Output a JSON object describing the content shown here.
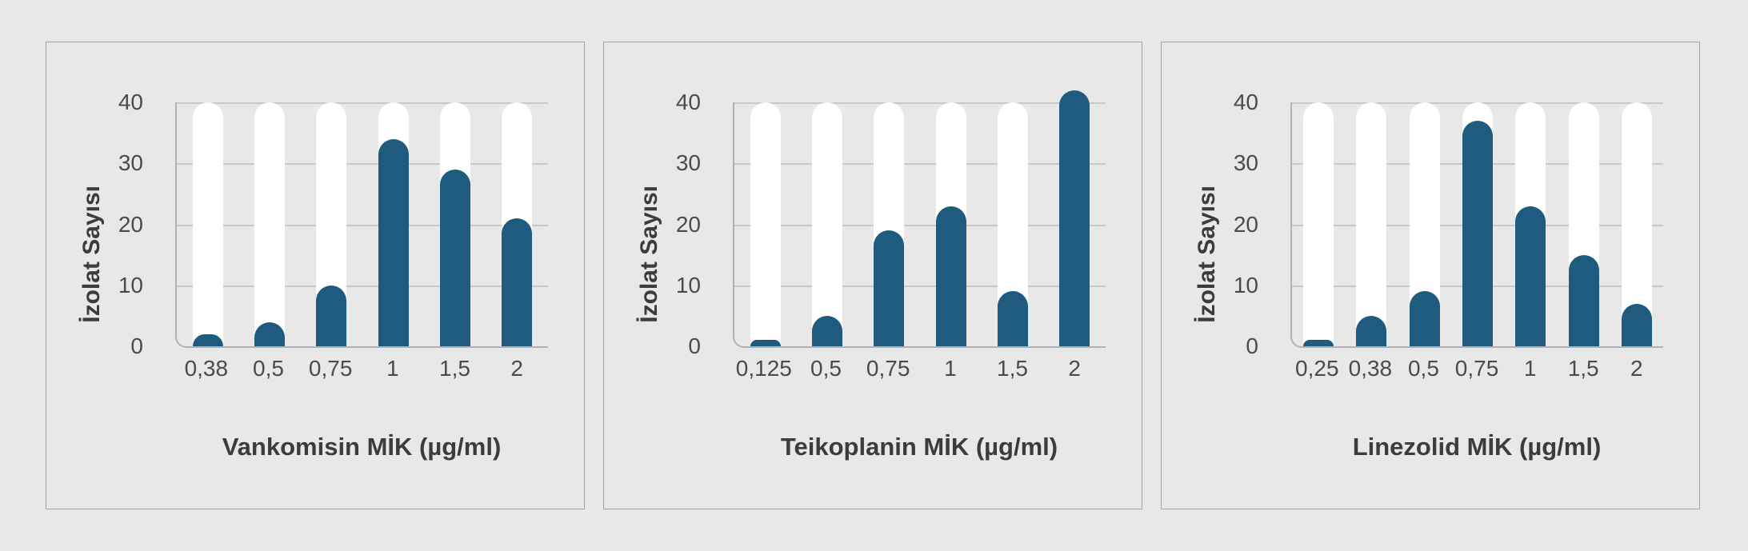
{
  "page": {
    "background": "#e8e8e8",
    "description": "Three MIC distribution bar charts"
  },
  "colors": {
    "page_bg": "#e8e8e8",
    "panel_border": "#a4a4ac",
    "bar": "#1e5b7e",
    "track": "#ffffff",
    "grid": "#c8c8ca",
    "axis": "#b2b2b6",
    "text_strong": "#3c3c3c",
    "text_tick": "#4b4b4b"
  },
  "chart_data": [
    {
      "type": "bar",
      "title": "Vankomisin MİK (µg/ml)",
      "ylabel": "İzolat Sayısı",
      "xlabel": "Vankomisin MİK (µg/ml)",
      "categories": [
        "0,38",
        "0,5",
        "0,75",
        "1",
        "1,5",
        "2"
      ],
      "values": [
        2,
        4,
        10,
        34,
        29,
        21
      ],
      "ylim": [
        0,
        40
      ],
      "yticks": [
        0,
        10,
        20,
        30,
        40
      ],
      "grid": true,
      "legend": false,
      "bar_style": "rounded-top with full-height white background track"
    },
    {
      "type": "bar",
      "title": "Teikoplanin MİK (µg/ml)",
      "ylabel": "İzolat Sayısı",
      "xlabel": "Teikoplanin MİK (µg/ml)",
      "categories": [
        "0,125",
        "0,5",
        "0,75",
        "1",
        "1,5",
        "2"
      ],
      "values": [
        1,
        5,
        19,
        23,
        9,
        42
      ],
      "ylim": [
        0,
        40
      ],
      "yticks": [
        0,
        10,
        20,
        30,
        40
      ],
      "grid": true,
      "legend": false,
      "bar_style": "rounded-top with full-height white background track"
    },
    {
      "type": "bar",
      "title": "Linezolid MİK (µg/ml)",
      "ylabel": "İzolat Sayısı",
      "xlabel": "Linezolid MİK (µg/ml)",
      "categories": [
        "0,25",
        "0,38",
        "0,5",
        "0,75",
        "1",
        "1,5",
        "2"
      ],
      "values": [
        1,
        5,
        9,
        37,
        23,
        15,
        7
      ],
      "ylim": [
        0,
        40
      ],
      "yticks": [
        0,
        10,
        20,
        30,
        40
      ],
      "grid": true,
      "legend": false,
      "bar_style": "rounded-top with full-height white background track"
    }
  ]
}
